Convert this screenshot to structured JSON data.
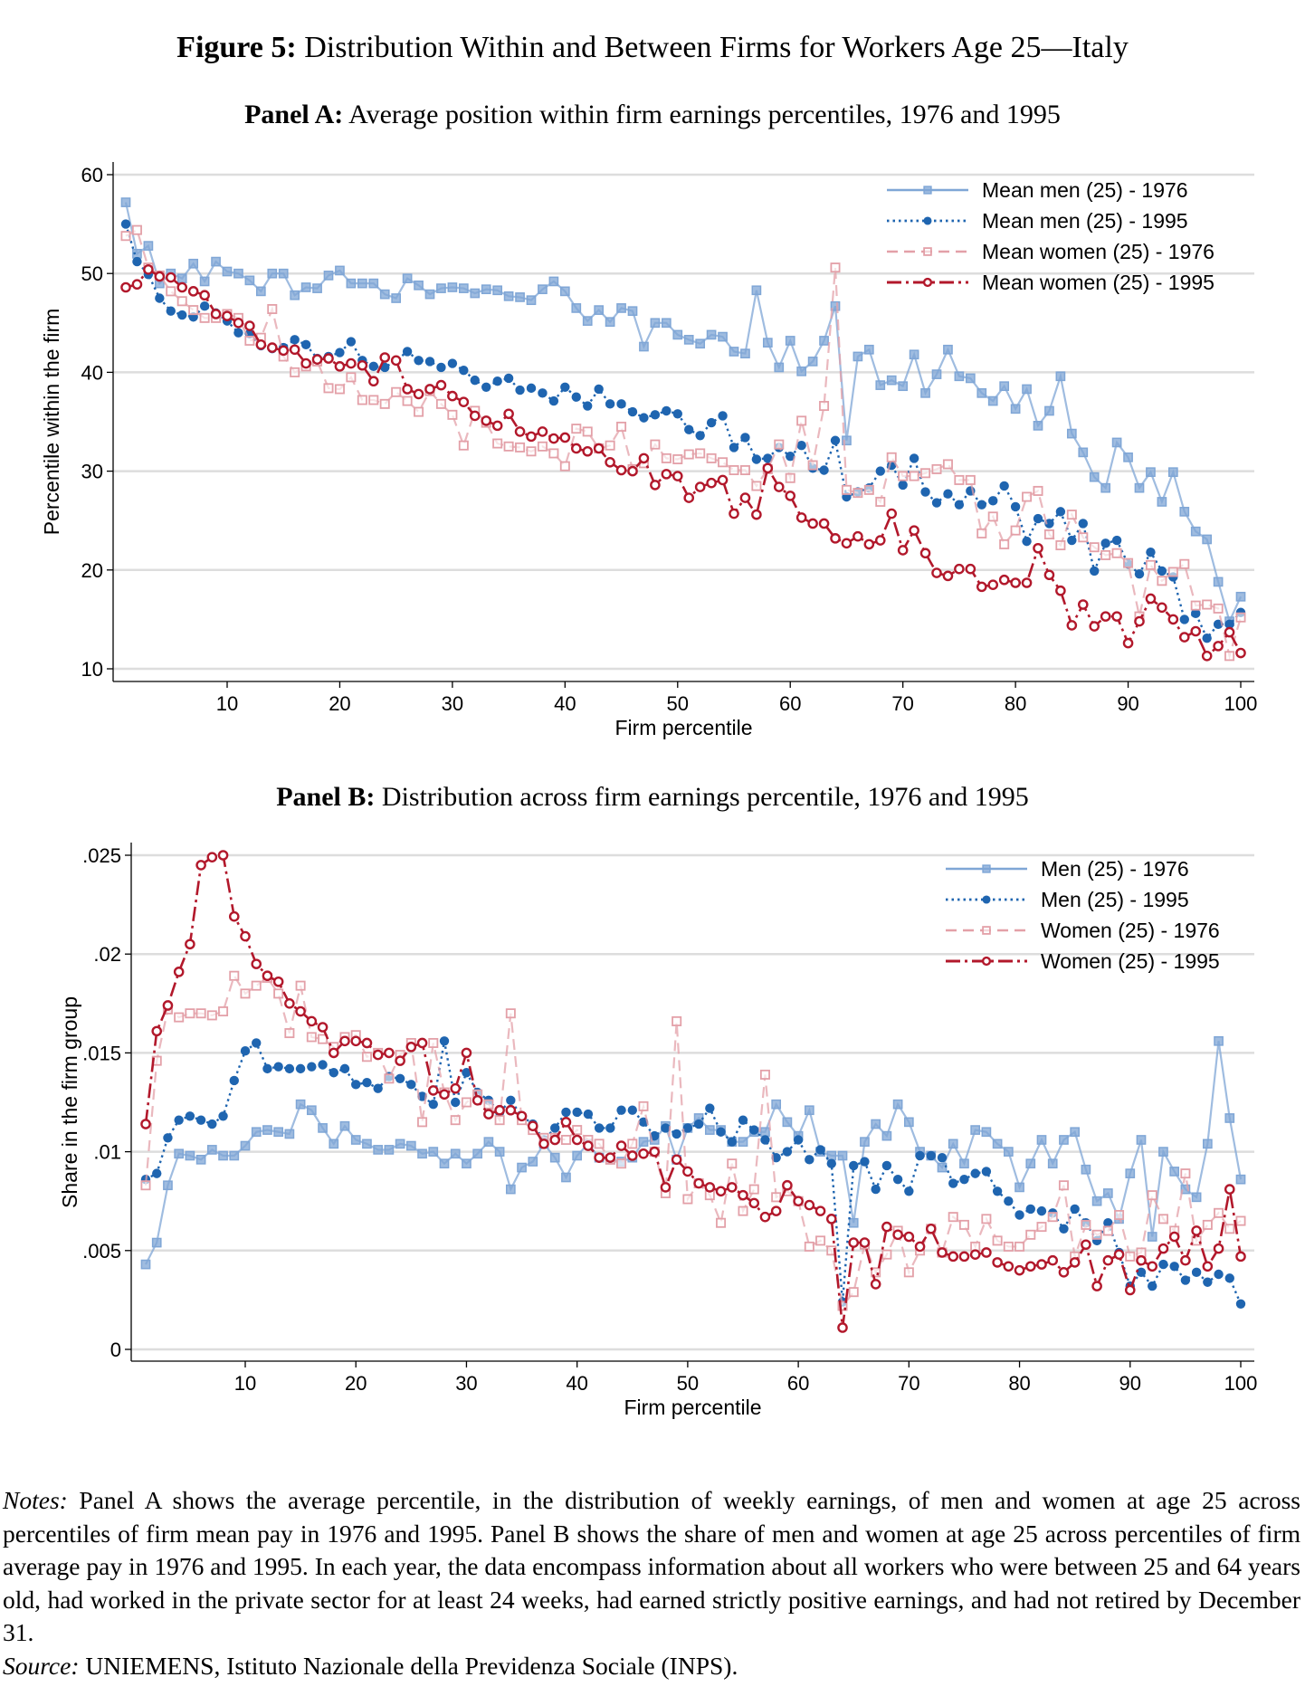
{
  "figure": {
    "label": "Figure 5:",
    "title": "Distribution Within and Between Firms for Workers Age 25—Italy"
  },
  "colors": {
    "men_1976": "#7FA6D6",
    "men_1995": "#1F65B0",
    "women_1976": "#E3A0A8",
    "women_1995": "#B2182B",
    "grid": "#DDDDDD"
  },
  "notes": {
    "notes_label": "Notes:",
    "notes_text": " Panel A shows the average percentile, in the distribution of weekly earnings, of men and women at age 25 across percentiles of firm mean pay in 1976 and 1995. Panel B shows the share of men and women at age 25 across percentiles of firm average pay in 1976 and 1995. In each year, the data encompass information about all workers who were between 25 and 64 years old, had worked in the private sector for at least 24 weeks, had earned strictly positive earnings, and had not retired by December 31.",
    "source_label": "Source:",
    "source_text": " UNIEMENS, Istituto Nazionale della Previdenza Sociale (INPS)."
  },
  "chart_data": [
    {
      "type": "line",
      "panel_label": "Panel A:",
      "title": "Average position within firm earnings percentiles, 1976 and 1995",
      "xlabel": "Firm percentile",
      "ylabel": "Percentile within the firm",
      "xlim": [
        1,
        100
      ],
      "ylim": [
        10,
        60
      ],
      "xticks": [
        10,
        20,
        30,
        40,
        50,
        60,
        70,
        80,
        90,
        100
      ],
      "yticks": [
        10,
        20,
        30,
        40,
        50,
        60
      ],
      "ytick_labels": [
        "10",
        "20",
        "30",
        "40",
        "50",
        "60"
      ],
      "grid": true,
      "legend_placement": "top-right",
      "x_start": 1,
      "series": [
        {
          "name": "Mean men (25) - 1976",
          "key": "men_1976",
          "marker": "square",
          "line": "solid",
          "values": [
            57.2,
            52,
            52.8,
            49,
            50,
            49.5,
            51,
            49.2,
            51.2,
            50.2,
            50,
            49.3,
            48.2,
            50,
            50,
            47.8,
            48.6,
            48.5,
            49.8,
            50.3,
            49,
            49,
            49,
            47.9,
            47.5,
            49.5,
            48.8,
            47.9,
            48.5,
            48.6,
            48.5,
            48,
            48.4,
            48.3,
            47.7,
            47.6,
            47.3,
            48.4,
            49.2,
            48.2,
            46.5,
            45.2,
            46.3,
            45.1,
            46.5,
            46.2,
            42.6,
            45,
            45,
            43.8,
            43.3,
            42.9,
            43.8,
            43.6,
            42.1,
            41.9,
            48.3,
            43,
            40.5,
            43.2,
            40.1,
            41.1,
            43.2,
            46.7,
            33.1,
            41.6,
            42.3,
            38.7,
            39.2,
            38.6,
            41.8,
            37.9,
            39.8,
            42.3,
            39.6,
            39.4,
            37.9,
            37.1,
            38.6,
            36.3,
            38.3,
            34.6,
            36.1,
            39.6,
            33.8,
            31.9,
            29.4,
            28.3,
            32.9,
            31.4,
            28.3,
            29.9,
            26.9,
            29.9,
            25.9,
            23.9,
            23.1,
            18.8,
            14.8,
            17.3
          ]
        },
        {
          "name": "Mean men (25) - 1995",
          "key": "men_1995",
          "marker": "circle",
          "line": "dot",
          "values": [
            55,
            51.2,
            49.9,
            47.5,
            46.2,
            45.8,
            45.6,
            46.7,
            46,
            45.2,
            44,
            43.9,
            42.7,
            42.4,
            42.5,
            43.3,
            42.8,
            41.4,
            41.6,
            42,
            43.1,
            41.2,
            40.6,
            40.5,
            41.2,
            42.1,
            41.2,
            41.1,
            40.5,
            40.9,
            40.2,
            39.2,
            38.5,
            39.1,
            39.4,
            38.2,
            38.4,
            37.9,
            37.1,
            38.5,
            37.5,
            36.6,
            38.3,
            36.8,
            36.8,
            36,
            35.4,
            35.7,
            36.1,
            35.8,
            34.2,
            33.6,
            34.9,
            35.6,
            32.4,
            33.4,
            31.2,
            31.3,
            32.4,
            31.5,
            32.6,
            30.3,
            30.1,
            33.1,
            27.4,
            27.9,
            28.3,
            30,
            30.6,
            28.6,
            31.3,
            27.9,
            26.8,
            27.7,
            26.6,
            28,
            26.6,
            27,
            28.5,
            26.4,
            22.9,
            25.2,
            24.7,
            25.9,
            23,
            24.7,
            19.9,
            22.7,
            23,
            20.6,
            19.6,
            21.8,
            19.9,
            19.3,
            15,
            15.6,
            13.1,
            14.5,
            14.5,
            15.7
          ]
        },
        {
          "name": "Mean women (25) - 1976",
          "key": "women_1976",
          "marker": "hollow-square",
          "line": "dash",
          "values": [
            53.8,
            54.4,
            50.6,
            49.8,
            48.2,
            47.2,
            46.3,
            45.5,
            45.5,
            45.9,
            45.5,
            43.2,
            43.5,
            46.4,
            41.6,
            40,
            40.6,
            41.1,
            38.4,
            38.3,
            39.5,
            37.2,
            37.2,
            36.8,
            38,
            37.1,
            36,
            38.1,
            36.8,
            35.7,
            32.6,
            36.1,
            34.9,
            32.8,
            32.5,
            32.4,
            32,
            32.5,
            31.8,
            30.5,
            34.3,
            34,
            32.3,
            32.6,
            34.5,
            30.2,
            30.8,
            32.7,
            31.3,
            31.2,
            31.7,
            31.8,
            31.3,
            30.9,
            30.1,
            30.1,
            28.5,
            30.2,
            32.7,
            29.3,
            35.1,
            30.6,
            36.6,
            50.6,
            28.1,
            27.8,
            28.1,
            26.9,
            31.4,
            29.5,
            29.5,
            29.8,
            30.2,
            30.7,
            29.1,
            29.1,
            23.7,
            25.4,
            22.6,
            24,
            27.4,
            28,
            23.6,
            22.5,
            25.6,
            23.3,
            22.3,
            21.5,
            21.7,
            20.7,
            15.3,
            20.5,
            18.9,
            19.8,
            20.6,
            16.4,
            16.5,
            16.1,
            11.3,
            15.2
          ]
        },
        {
          "name": "Mean women (25) - 1995",
          "key": "women_1995",
          "marker": "hollow-circle",
          "line": "dashdot",
          "values": [
            48.6,
            48.9,
            50.4,
            49.7,
            49.6,
            48.6,
            48.2,
            47.8,
            45.9,
            45.7,
            45,
            44.7,
            42.8,
            42.5,
            42.2,
            42.3,
            40.9,
            41.3,
            41.4,
            40.6,
            40.9,
            40.7,
            39.1,
            41.5,
            41.2,
            38.3,
            37.8,
            38.3,
            38.7,
            37.6,
            37,
            35.6,
            35.1,
            34.6,
            35.8,
            34,
            33.5,
            34,
            33.3,
            33.4,
            32.3,
            32,
            32.3,
            30.9,
            30.1,
            30,
            31.3,
            28.6,
            29.7,
            29.5,
            27.3,
            28.4,
            28.8,
            29.1,
            25.7,
            27.3,
            25.6,
            30.3,
            28.4,
            27.5,
            25.3,
            24.7,
            24.7,
            23.2,
            22.7,
            23.4,
            22.6,
            23,
            25.7,
            22,
            24,
            21.7,
            19.7,
            19.4,
            20.1,
            20.1,
            18.3,
            18.5,
            19,
            18.7,
            18.7,
            22.2,
            19.5,
            17.9,
            14.4,
            16.5,
            14.3,
            15.3,
            15.3,
            12.6,
            14.8,
            17.1,
            16.2,
            15,
            13.2,
            13.8,
            11.3,
            12.3,
            13.7,
            11.6
          ]
        }
      ]
    },
    {
      "type": "line",
      "panel_label": "Panel B:",
      "title": "Distribution across firm earnings percentile, 1976 and 1995",
      "xlabel": "Firm percentile",
      "ylabel": "Share in the firm group",
      "xlim": [
        1,
        100
      ],
      "ylim": [
        0,
        0.025
      ],
      "xticks": [
        10,
        20,
        30,
        40,
        50,
        60,
        70,
        80,
        90,
        100
      ],
      "yticks": [
        0,
        0.005,
        0.01,
        0.015,
        0.02,
        0.025
      ],
      "ytick_labels": [
        "0",
        ".005",
        ".01",
        ".015",
        ".02",
        ".025"
      ],
      "grid": true,
      "legend_placement": "top-right",
      "x_start": 1,
      "series": [
        {
          "name": "Men (25) - 1976",
          "key": "men_1976",
          "marker": "square",
          "line": "solid",
          "values": [
            0.0043,
            0.0054,
            0.0083,
            0.0099,
            0.0098,
            0.0096,
            0.0101,
            0.0098,
            0.0098,
            0.0103,
            0.011,
            0.0111,
            0.011,
            0.0109,
            0.0124,
            0.0121,
            0.0112,
            0.0104,
            0.0113,
            0.0106,
            0.0104,
            0.0101,
            0.0101,
            0.0104,
            0.0103,
            0.0099,
            0.01,
            0.0094,
            0.0099,
            0.0094,
            0.0099,
            0.0105,
            0.01,
            0.0081,
            0.0092,
            0.0095,
            0.0104,
            0.0097,
            0.0087,
            0.0098,
            0.0104,
            0.0097,
            0.0096,
            0.0095,
            0.0097,
            0.0105,
            0.0106,
            0.0113,
            0.0096,
            0.0112,
            0.0117,
            0.0111,
            0.0111,
            0.0105,
            0.0105,
            0.011,
            0.011,
            0.0124,
            0.0115,
            0.0108,
            0.0121,
            0.01,
            0.0098,
            0.0098,
            0.0064,
            0.0105,
            0.0114,
            0.0108,
            0.0124,
            0.0115,
            0.01,
            0.0098,
            0.0092,
            0.0104,
            0.0094,
            0.0111,
            0.011,
            0.0104,
            0.01,
            0.0082,
            0.0094,
            0.0106,
            0.0094,
            0.0106,
            0.011,
            0.0091,
            0.0075,
            0.0079,
            0.0066,
            0.0089,
            0.0106,
            0.0057,
            0.01,
            0.009,
            0.0081,
            0.0077,
            0.0104,
            0.0156,
            0.0117,
            0.0086
          ]
        },
        {
          "name": "Men (25) - 1995",
          "key": "men_1995",
          "marker": "circle",
          "line": "dot",
          "values": [
            0.0086,
            0.0089,
            0.0107,
            0.0116,
            0.0118,
            0.0116,
            0.0114,
            0.0118,
            0.0136,
            0.0151,
            0.0155,
            0.0142,
            0.0143,
            0.0142,
            0.0142,
            0.0143,
            0.0144,
            0.014,
            0.0142,
            0.0134,
            0.0135,
            0.0132,
            0.0138,
            0.0137,
            0.0134,
            0.0128,
            0.0124,
            0.0156,
            0.0125,
            0.014,
            0.013,
            0.0126,
            0.012,
            0.0126,
            0.0118,
            0.0114,
            0.0106,
            0.0112,
            0.012,
            0.012,
            0.0119,
            0.0112,
            0.0112,
            0.0121,
            0.0121,
            0.0115,
            0.0108,
            0.0112,
            0.0109,
            0.0112,
            0.0114,
            0.0122,
            0.011,
            0.0105,
            0.0116,
            0.0111,
            0.0106,
            0.0097,
            0.01,
            0.0106,
            0.0096,
            0.0101,
            0.0094,
            0.0024,
            0.0093,
            0.0095,
            0.0081,
            0.0093,
            0.0086,
            0.008,
            0.0098,
            0.0098,
            0.0097,
            0.0084,
            0.0086,
            0.0089,
            0.009,
            0.008,
            0.0075,
            0.0068,
            0.0071,
            0.007,
            0.0069,
            0.0061,
            0.0071,
            0.0064,
            0.0055,
            0.0064,
            0.0049,
            0.0032,
            0.0039,
            0.0032,
            0.0043,
            0.0042,
            0.0035,
            0.0039,
            0.0034,
            0.0038,
            0.0036,
            0.0023
          ]
        },
        {
          "name": "Women (25) - 1976",
          "key": "women_1976",
          "marker": "hollow-square",
          "line": "dash",
          "values": [
            0.0083,
            0.0146,
            0.0172,
            0.0168,
            0.017,
            0.017,
            0.0169,
            0.0171,
            0.0189,
            0.018,
            0.0184,
            0.0188,
            0.018,
            0.016,
            0.0184,
            0.0158,
            0.0157,
            0.0153,
            0.0158,
            0.0159,
            0.0148,
            0.015,
            0.0137,
            0.0149,
            0.0155,
            0.0115,
            0.0155,
            0.013,
            0.0116,
            0.0125,
            0.0129,
            0.0124,
            0.0116,
            0.017,
            0.0116,
            0.0111,
            0.0107,
            0.0107,
            0.0106,
            0.0111,
            0.0106,
            0.0104,
            0.0096,
            0.0094,
            0.0104,
            0.0123,
            0.01,
            0.0079,
            0.0166,
            0.0076,
            0.0084,
            0.0078,
            0.0064,
            0.0094,
            0.007,
            0.0081,
            0.0139,
            0.0077,
            0.008,
            0.0075,
            0.0052,
            0.0055,
            0.005,
            0.0022,
            0.0029,
            0.0053,
            0.0039,
            0.0048,
            0.006,
            0.0039,
            0.005,
            0.0061,
            0.0049,
            0.0067,
            0.0063,
            0.0052,
            0.0066,
            0.0055,
            0.0052,
            0.0052,
            0.0058,
            0.0062,
            0.0067,
            0.0083,
            0.0047,
            0.0063,
            0.0058,
            0.006,
            0.0068,
            0.0047,
            0.0049,
            0.0078,
            0.0066,
            0.006,
            0.0089,
            0.0055,
            0.0063,
            0.0069,
            0.0061,
            0.0065
          ]
        },
        {
          "name": "Women (25) - 1995",
          "key": "women_1995",
          "marker": "hollow-circle",
          "line": "dashdot",
          "values": [
            0.0114,
            0.0161,
            0.0174,
            0.0191,
            0.0205,
            0.0245,
            0.0249,
            0.025,
            0.0219,
            0.0209,
            0.0195,
            0.0189,
            0.0186,
            0.0175,
            0.0171,
            0.0166,
            0.0163,
            0.015,
            0.0156,
            0.0156,
            0.0155,
            0.0149,
            0.015,
            0.0146,
            0.0153,
            0.0155,
            0.0131,
            0.0129,
            0.0132,
            0.015,
            0.0126,
            0.0119,
            0.0121,
            0.0121,
            0.0118,
            0.0113,
            0.0104,
            0.0106,
            0.0115,
            0.0106,
            0.0103,
            0.0097,
            0.0097,
            0.0103,
            0.0098,
            0.0099,
            0.01,
            0.0082,
            0.0096,
            0.009,
            0.0084,
            0.0082,
            0.008,
            0.0082,
            0.0078,
            0.0074,
            0.0067,
            0.007,
            0.0083,
            0.0075,
            0.0073,
            0.007,
            0.0066,
            0.0011,
            0.0054,
            0.0054,
            0.0033,
            0.0062,
            0.0058,
            0.0057,
            0.0052,
            0.0061,
            0.0049,
            0.0047,
            0.0047,
            0.0048,
            0.0049,
            0.0044,
            0.0042,
            0.004,
            0.0042,
            0.0043,
            0.0045,
            0.0039,
            0.0044,
            0.0053,
            0.0032,
            0.0045,
            0.0048,
            0.003,
            0.0045,
            0.0042,
            0.0051,
            0.0057,
            0.0045,
            0.006,
            0.0042,
            0.0051,
            0.0081,
            0.0047
          ]
        }
      ]
    }
  ]
}
